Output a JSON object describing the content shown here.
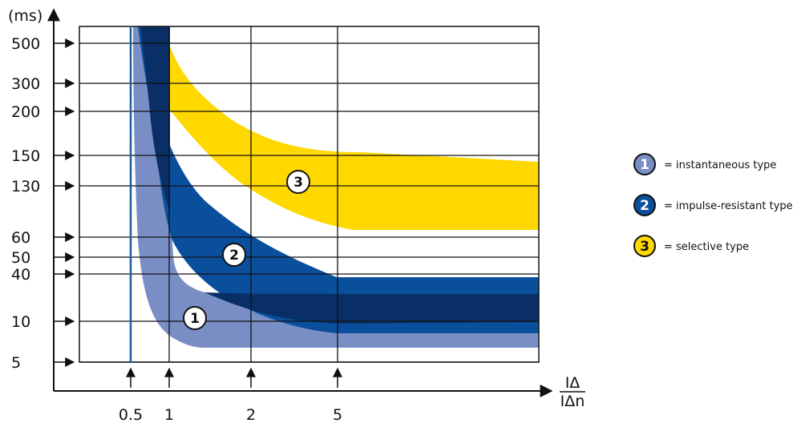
{
  "chart_data": {
    "type": "area",
    "y_unit_label": "(ms)",
    "y_scale": "nonlinear, categorical tick positions",
    "y_ticks": [
      "500",
      "300",
      "200",
      "150",
      "130",
      "60",
      "50",
      "40",
      "10",
      "5"
    ],
    "x_scale": "nonlinear, categorical tick positions",
    "x_ticks": [
      "0.5",
      "1",
      "2",
      "5"
    ],
    "x_label_numerator": "IΔ",
    "x_label_denominator": "IΔn",
    "grid": true,
    "reference_line_x": "0.5",
    "bands": [
      {
        "marker": "1",
        "name": "= instantaneous type",
        "color": "#7a8ec6"
      },
      {
        "marker": "2",
        "name": "= impulse-resistant type",
        "color": "#0a4f9c"
      },
      {
        "marker": "3",
        "name": "= selective type",
        "color": "#ffd800"
      }
    ],
    "overlap_color": "#0a2f66",
    "axis_color": "#111111",
    "reference_line_color": "#1f5fa0",
    "legend_placement": "right"
  }
}
